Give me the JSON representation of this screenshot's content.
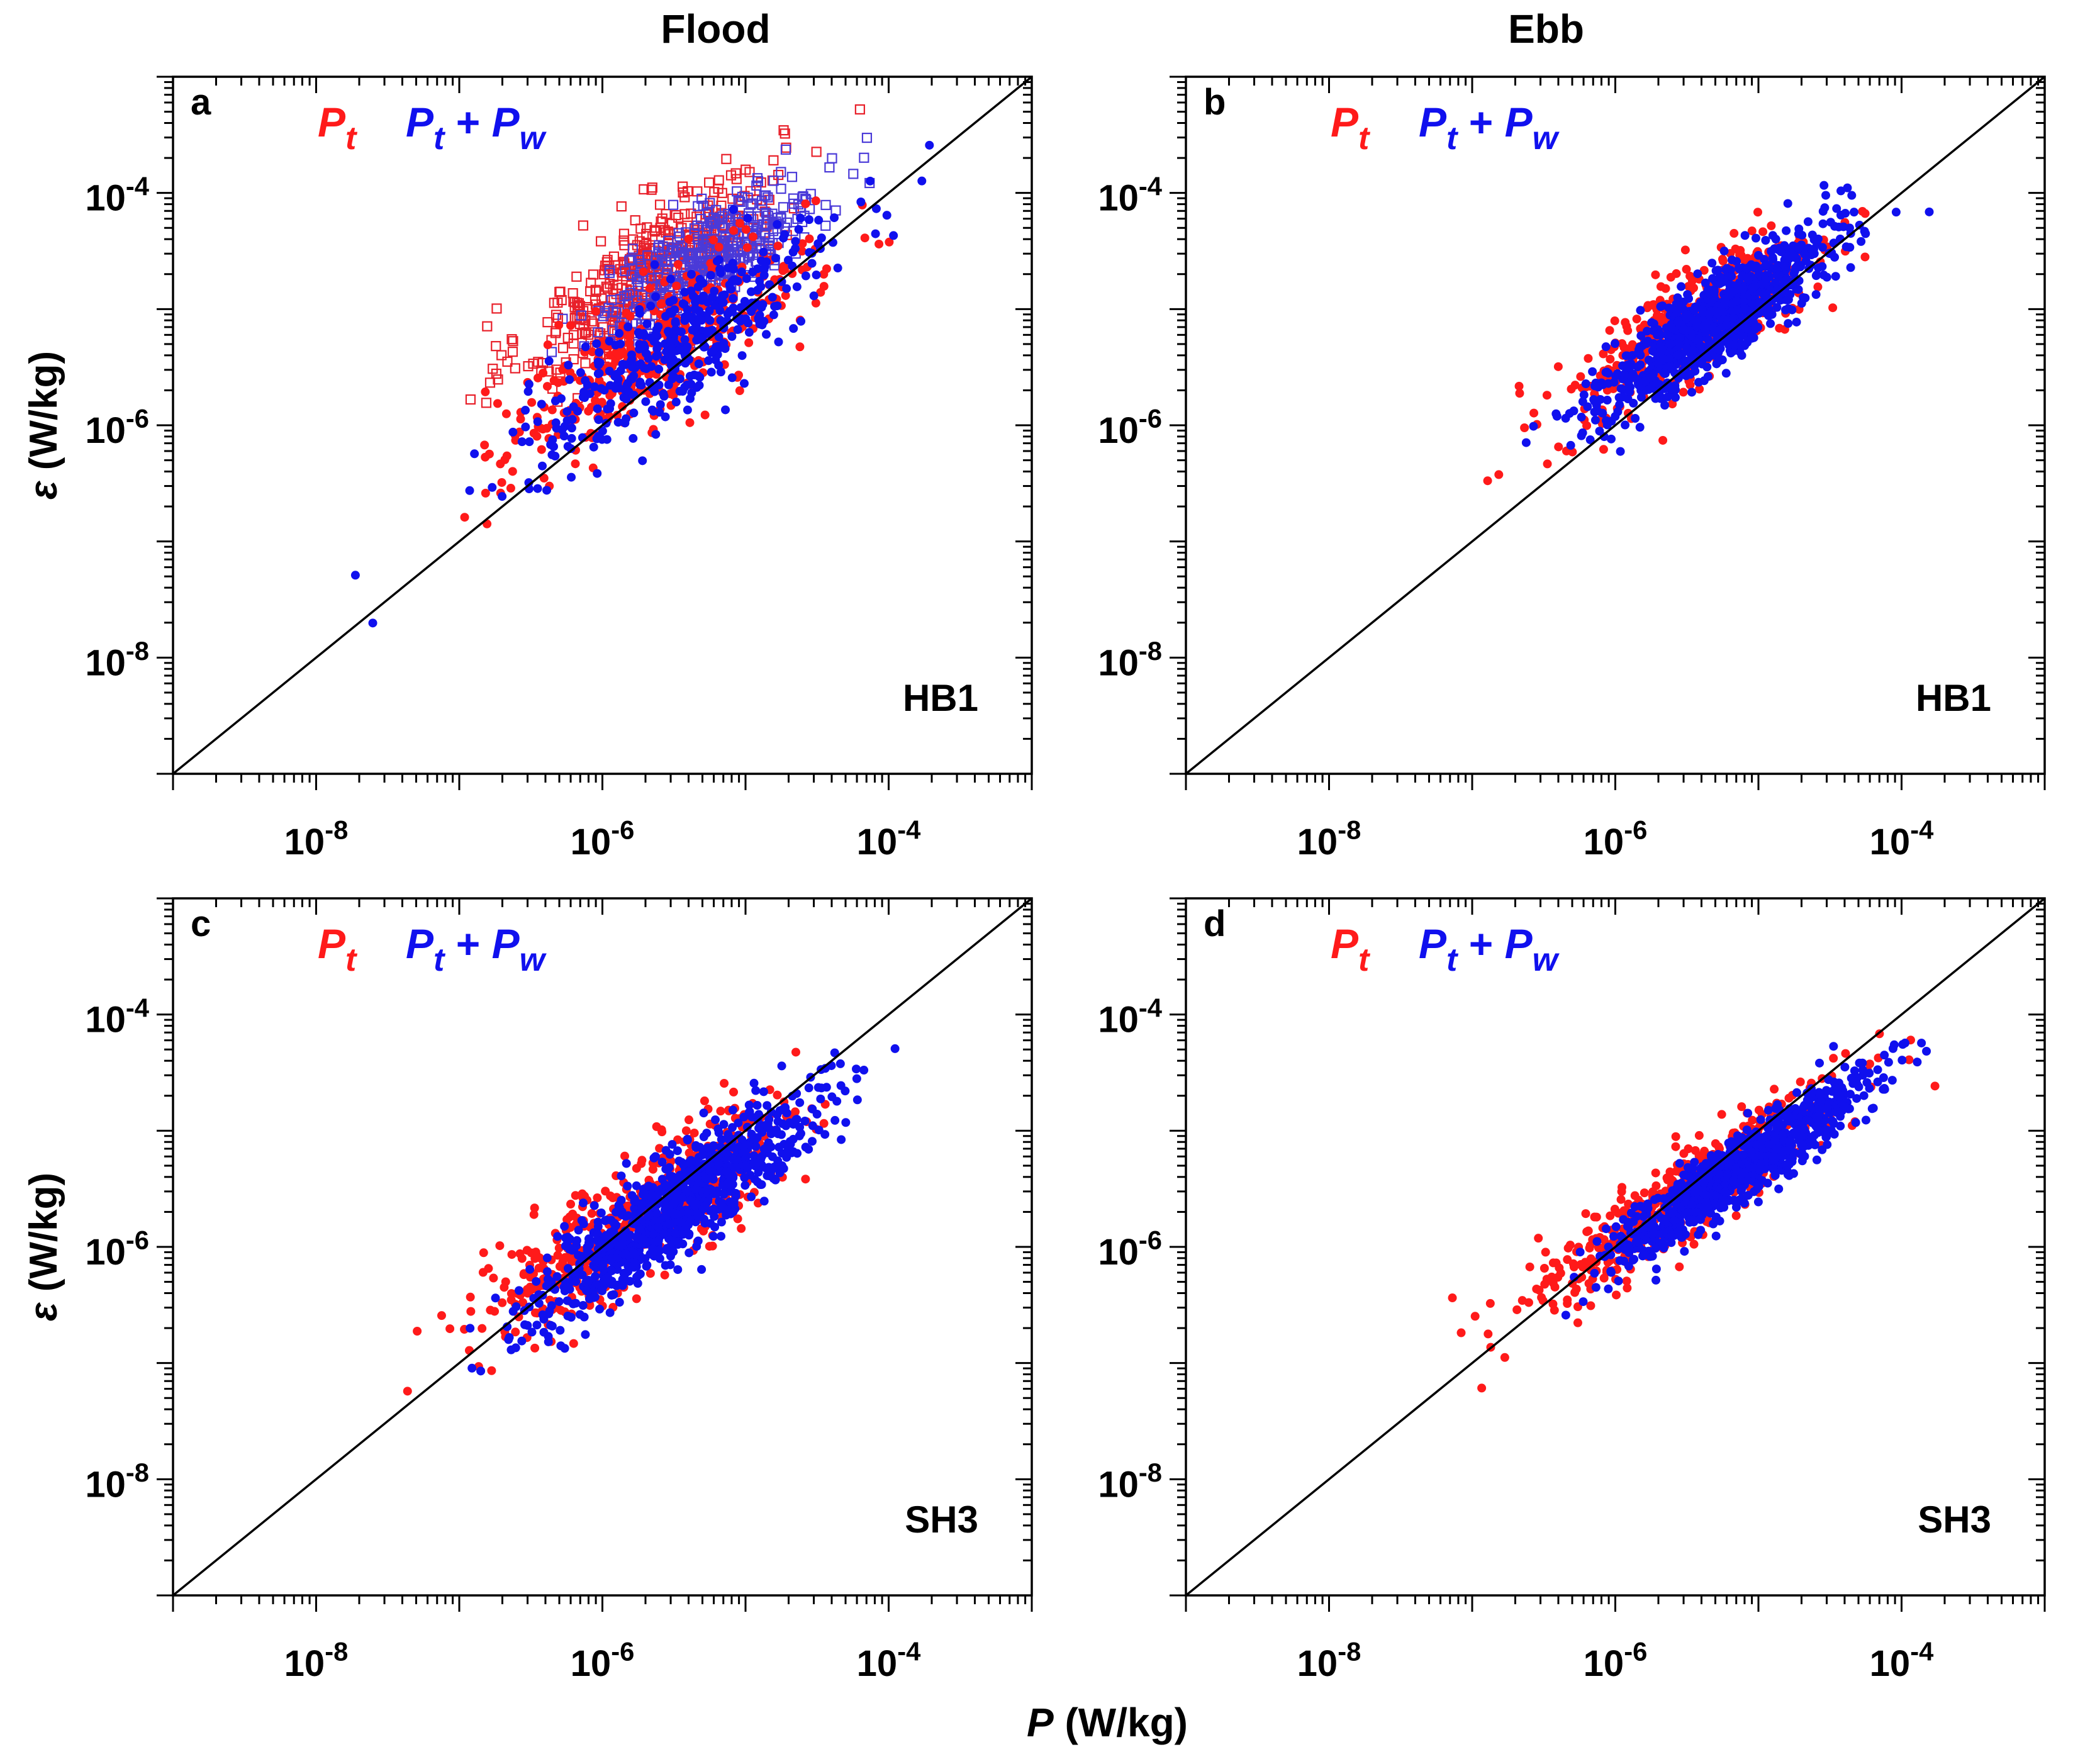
{
  "figure": {
    "column_titles": [
      "Flood",
      "Ebb"
    ],
    "y_label_symbol": "ε",
    "y_label_unit": " (W/kg)",
    "x_label_symbol": "P",
    "x_label_unit": " (W/kg)",
    "legend": {
      "series1": {
        "base": "P",
        "sub": "t"
      },
      "series2": {
        "base1": "P",
        "sub1": "t",
        "op": " + ",
        "base2": "P",
        "sub2": "w"
      }
    }
  },
  "colors": {
    "red": "#ff1a1a",
    "blue": "#1010ee",
    "open_red": "#e8202a",
    "open_blue": "#4a3ad8"
  },
  "chart_data": [
    {
      "type": "scatter",
      "panel": "a",
      "station": "HB1",
      "column": "Flood",
      "xscale": "log",
      "yscale": "log",
      "xlim": [
        1e-09,
        0.001
      ],
      "ylim": [
        1e-09,
        0.001
      ],
      "x_ticks": [
        "10^-8",
        "10^-6",
        "10^-4"
      ],
      "y_ticks": [
        "10^-8",
        "10^-6",
        "10^-4"
      ],
      "reference_line": "1:1",
      "clusters": [
        {
          "series": "Pt",
          "color": "red",
          "marker": "open-square",
          "n": 420,
          "logx_mean": -5.65,
          "logy_mean": -4.65,
          "sx": 0.45,
          "sy": 0.45,
          "corr": 0.8
        },
        {
          "series": "Pt+Pw",
          "color": "blue",
          "marker": "open-square",
          "n": 420,
          "logx_mean": -5.25,
          "logy_mean": -4.55,
          "sx": 0.38,
          "sy": 0.35,
          "corr": 0.8
        },
        {
          "series": "Pt",
          "color": "red",
          "marker": "filled-circle",
          "n": 380,
          "logx_mean": -5.6,
          "logy_mean": -5.35,
          "sx": 0.55,
          "sy": 0.48,
          "corr": 0.8
        },
        {
          "series": "Pt+Pw",
          "color": "blue",
          "marker": "filled-circle",
          "n": 420,
          "logx_mean": -5.45,
          "logy_mean": -5.3,
          "sx": 0.55,
          "sy": 0.5,
          "corr": 0.85
        }
      ]
    },
    {
      "type": "scatter",
      "panel": "b",
      "station": "HB1",
      "column": "Ebb",
      "xscale": "log",
      "yscale": "log",
      "xlim": [
        1e-09,
        0.001
      ],
      "ylim": [
        1e-09,
        0.001
      ],
      "x_ticks": [
        "10^-8",
        "10^-6",
        "10^-4"
      ],
      "y_ticks": [
        "10^-8",
        "10^-6",
        "10^-4"
      ],
      "reference_line": "1:1",
      "clusters": [
        {
          "series": "Pt",
          "color": "red",
          "marker": "filled-circle",
          "n": 480,
          "logx_mean": -5.45,
          "logy_mean": -5.15,
          "sx": 0.45,
          "sy": 0.42,
          "corr": 0.8
        },
        {
          "series": "Pt+Pw",
          "color": "blue",
          "marker": "filled-circle",
          "n": 900,
          "logx_mean": -5.3,
          "logy_mean": -5.1,
          "sx": 0.4,
          "sy": 0.38,
          "corr": 0.85
        }
      ]
    },
    {
      "type": "scatter",
      "panel": "c",
      "station": "SH3",
      "column": "Flood",
      "xscale": "log",
      "yscale": "log",
      "xlim": [
        1e-09,
        0.001
      ],
      "ylim": [
        1e-09,
        0.001
      ],
      "x_ticks": [
        "10^-8",
        "10^-6",
        "10^-4"
      ],
      "y_ticks": [
        "10^-8",
        "10^-6",
        "10^-4"
      ],
      "reference_line": "1:1",
      "clusters": [
        {
          "series": "Pt",
          "color": "red",
          "marker": "filled-circle",
          "n": 480,
          "logx_mean": -5.75,
          "logy_mean": -5.75,
          "sx": 0.55,
          "sy": 0.5,
          "corr": 0.85
        },
        {
          "series": "Pt+Pw",
          "color": "blue",
          "marker": "filled-circle",
          "n": 900,
          "logx_mean": -5.5,
          "logy_mean": -5.65,
          "sx": 0.5,
          "sy": 0.48,
          "corr": 0.9
        }
      ]
    },
    {
      "type": "scatter",
      "panel": "d",
      "station": "SH3",
      "column": "Ebb",
      "xscale": "log",
      "yscale": "log",
      "xlim": [
        1e-09,
        0.001
      ],
      "ylim": [
        1e-09,
        0.001
      ],
      "x_ticks": [
        "10^-8",
        "10^-6",
        "10^-4"
      ],
      "y_ticks": [
        "10^-8",
        "10^-6",
        "10^-4"
      ],
      "reference_line": "1:1",
      "clusters": [
        {
          "series": "Pt",
          "color": "red",
          "marker": "filled-circle",
          "n": 480,
          "logx_mean": -5.5,
          "logy_mean": -5.55,
          "sx": 0.55,
          "sy": 0.5,
          "corr": 0.92
        },
        {
          "series": "Pt+Pw",
          "color": "blue",
          "marker": "filled-circle",
          "n": 900,
          "logx_mean": -5.15,
          "logy_mean": -5.35,
          "sx": 0.45,
          "sy": 0.4,
          "corr": 0.93
        }
      ]
    }
  ]
}
